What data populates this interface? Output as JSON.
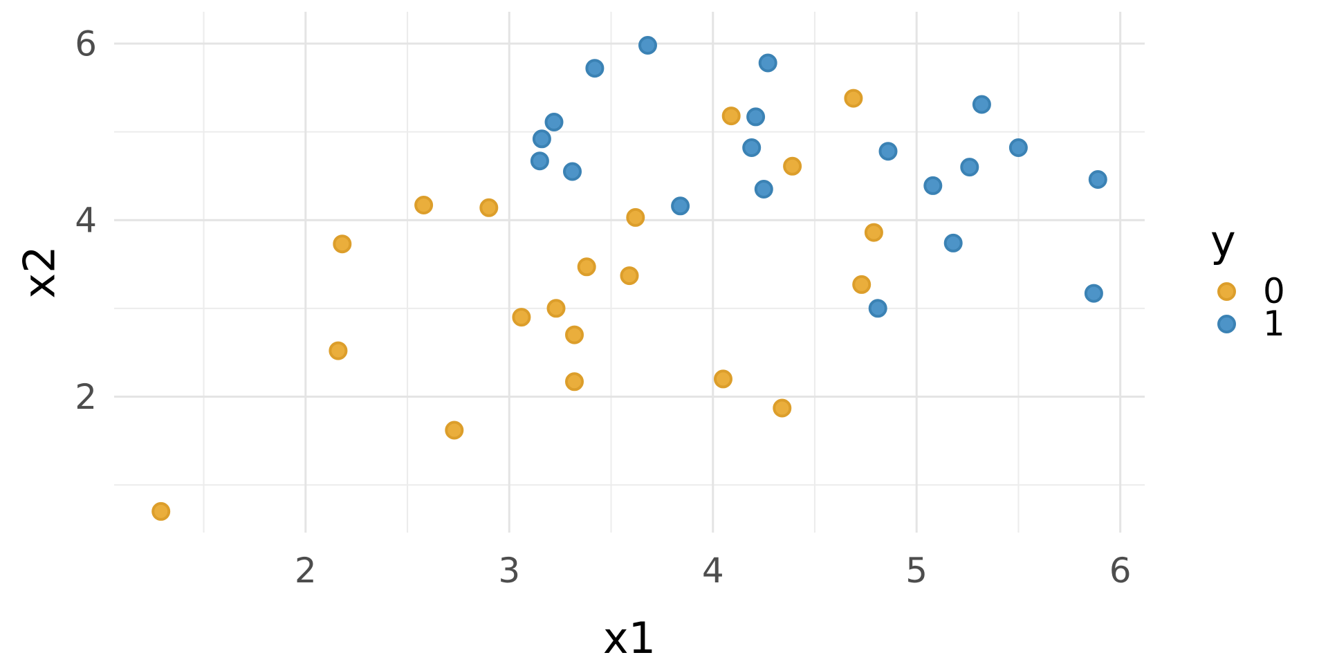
{
  "chart_data": {
    "type": "scatter",
    "title": "",
    "xlabel": "x1",
    "ylabel": "x2",
    "x_domain": [
      1.06,
      6.12
    ],
    "y_domain": [
      0.46,
      6.36
    ],
    "x_major_ticks": [
      2,
      3,
      4,
      5,
      6
    ],
    "x_minor_ticks": [
      1.5,
      2.5,
      3.5,
      4.5,
      5.5
    ],
    "y_major_ticks": [
      2,
      4,
      6
    ],
    "y_minor_ticks": [
      1,
      3,
      5
    ],
    "grid": true,
    "background": "#ffffff",
    "grid_major_color": "#e4e4e4",
    "grid_minor_color": "#ececec",
    "tick_label_color": "#4d4d4d",
    "axis_title_color": "#000000",
    "legend_position": "right",
    "legend_title": "y",
    "series": [
      {
        "name": "0",
        "fill": "#EAAE3C",
        "stroke": "#DC9E2B",
        "points": [
          [
            1.29,
            0.7
          ],
          [
            2.16,
            2.52
          ],
          [
            2.18,
            3.73
          ],
          [
            2.58,
            4.17
          ],
          [
            2.73,
            1.62
          ],
          [
            2.9,
            4.14
          ],
          [
            3.06,
            2.9
          ],
          [
            3.23,
            3.0
          ],
          [
            3.32,
            2.7
          ],
          [
            3.32,
            2.17
          ],
          [
            3.38,
            3.47
          ],
          [
            3.59,
            3.37
          ],
          [
            3.62,
            4.03
          ],
          [
            4.05,
            2.2
          ],
          [
            4.09,
            5.18
          ],
          [
            4.34,
            1.87
          ],
          [
            4.39,
            4.61
          ],
          [
            4.69,
            5.38
          ],
          [
            4.73,
            3.27
          ],
          [
            4.79,
            3.86
          ]
        ]
      },
      {
        "name": "1",
        "fill": "#4D94C8",
        "stroke": "#3B82B4",
        "points": [
          [
            3.15,
            4.67
          ],
          [
            3.16,
            4.92
          ],
          [
            3.22,
            5.11
          ],
          [
            3.31,
            4.55
          ],
          [
            3.42,
            5.72
          ],
          [
            3.68,
            5.98
          ],
          [
            3.84,
            4.16
          ],
          [
            4.19,
            4.82
          ],
          [
            4.21,
            5.17
          ],
          [
            4.25,
            4.35
          ],
          [
            4.27,
            5.78
          ],
          [
            4.81,
            3.0
          ],
          [
            4.86,
            4.78
          ],
          [
            5.08,
            4.39
          ],
          [
            5.18,
            3.74
          ],
          [
            5.26,
            4.6
          ],
          [
            5.32,
            5.31
          ],
          [
            5.5,
            4.82
          ],
          [
            5.87,
            3.17
          ],
          [
            5.89,
            4.46
          ]
        ]
      }
    ]
  },
  "legend": {
    "title": "y",
    "items": [
      {
        "label": "0"
      },
      {
        "label": "1"
      }
    ]
  }
}
